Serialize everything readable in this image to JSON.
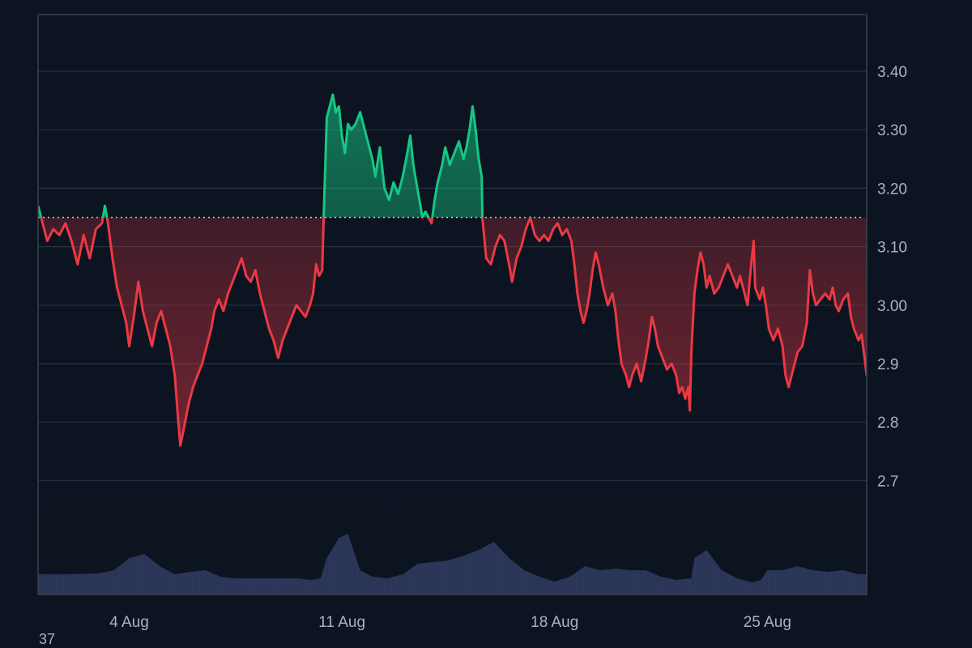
{
  "chart_data": {
    "type": "area",
    "baseline": 3.15,
    "y_axis": {
      "position": "right",
      "range": [
        2.6,
        3.5
      ],
      "ticks": [
        "3.40",
        "3.30",
        "3.20",
        "3.10",
        "3.00",
        "2.9",
        "2.8",
        "2.7"
      ],
      "tick_values": [
        3.4,
        3.3,
        3.2,
        3.1,
        3.0,
        2.9,
        2.8,
        2.7
      ]
    },
    "x_axis": {
      "unit": "days since 1 Aug",
      "range": [
        0,
        31
      ],
      "ticks": [
        "4 Aug",
        "11 Aug",
        "18 Aug",
        "25 Aug"
      ],
      "tick_values": [
        4,
        11,
        18,
        25
      ]
    },
    "grid": "horizontal",
    "corner_label": "37",
    "colors": {
      "background": "#0d1421",
      "above_baseline": "#16c784",
      "below_baseline": "#ea3943",
      "volume": "#2f3a5f",
      "grid": "#2a3140",
      "baseline_line": "#d0d4da"
    },
    "series": [
      {
        "role": "price",
        "points": [
          [
            1.0,
            3.17
          ],
          [
            1.1,
            3.15
          ],
          [
            1.3,
            3.11
          ],
          [
            1.5,
            3.13
          ],
          [
            1.7,
            3.12
          ],
          [
            1.9,
            3.14
          ],
          [
            2.1,
            3.11
          ],
          [
            2.3,
            3.07
          ],
          [
            2.5,
            3.12
          ],
          [
            2.7,
            3.08
          ],
          [
            2.9,
            3.13
          ],
          [
            3.1,
            3.14
          ],
          [
            3.2,
            3.17
          ],
          [
            3.3,
            3.14
          ],
          [
            3.45,
            3.08
          ],
          [
            3.6,
            3.03
          ],
          [
            3.75,
            3.0
          ],
          [
            3.9,
            2.97
          ],
          [
            4.0,
            2.93
          ],
          [
            4.15,
            2.98
          ],
          [
            4.3,
            3.04
          ],
          [
            4.45,
            2.99
          ],
          [
            4.6,
            2.96
          ],
          [
            4.75,
            2.93
          ],
          [
            4.9,
            2.97
          ],
          [
            5.05,
            2.99
          ],
          [
            5.2,
            2.96
          ],
          [
            5.35,
            2.93
          ],
          [
            5.5,
            2.88
          ],
          [
            5.6,
            2.81
          ],
          [
            5.68,
            2.76
          ],
          [
            5.8,
            2.79
          ],
          [
            5.95,
            2.83
          ],
          [
            6.1,
            2.86
          ],
          [
            6.25,
            2.88
          ],
          [
            6.4,
            2.9
          ],
          [
            6.55,
            2.93
          ],
          [
            6.7,
            2.96
          ],
          [
            6.8,
            2.99
          ],
          [
            6.95,
            3.01
          ],
          [
            7.1,
            2.99
          ],
          [
            7.25,
            3.02
          ],
          [
            7.4,
            3.04
          ],
          [
            7.55,
            3.06
          ],
          [
            7.7,
            3.08
          ],
          [
            7.85,
            3.05
          ],
          [
            8.0,
            3.04
          ],
          [
            8.15,
            3.06
          ],
          [
            8.3,
            3.02
          ],
          [
            8.45,
            2.99
          ],
          [
            8.6,
            2.96
          ],
          [
            8.75,
            2.94
          ],
          [
            8.9,
            2.91
          ],
          [
            9.05,
            2.94
          ],
          [
            9.2,
            2.96
          ],
          [
            9.35,
            2.98
          ],
          [
            9.5,
            3.0
          ],
          [
            9.65,
            2.99
          ],
          [
            9.8,
            2.98
          ],
          [
            9.95,
            3.0
          ],
          [
            10.05,
            3.02
          ],
          [
            10.15,
            3.07
          ],
          [
            10.25,
            3.05
          ],
          [
            10.35,
            3.06
          ],
          [
            10.4,
            3.15
          ],
          [
            10.5,
            3.32
          ],
          [
            10.6,
            3.34
          ],
          [
            10.7,
            3.36
          ],
          [
            10.8,
            3.33
          ],
          [
            10.9,
            3.34
          ],
          [
            11.0,
            3.29
          ],
          [
            11.1,
            3.26
          ],
          [
            11.2,
            3.31
          ],
          [
            11.3,
            3.3
          ],
          [
            11.45,
            3.31
          ],
          [
            11.6,
            3.33
          ],
          [
            11.75,
            3.3
          ],
          [
            11.9,
            3.27
          ],
          [
            12.0,
            3.25
          ],
          [
            12.1,
            3.22
          ],
          [
            12.25,
            3.27
          ],
          [
            12.4,
            3.2
          ],
          [
            12.55,
            3.18
          ],
          [
            12.7,
            3.21
          ],
          [
            12.85,
            3.19
          ],
          [
            13.0,
            3.22
          ],
          [
            13.15,
            3.26
          ],
          [
            13.25,
            3.29
          ],
          [
            13.35,
            3.24
          ],
          [
            13.45,
            3.21
          ],
          [
            13.55,
            3.18
          ],
          [
            13.65,
            3.15
          ],
          [
            13.75,
            3.16
          ],
          [
            13.85,
            3.15
          ],
          [
            13.95,
            3.14
          ],
          [
            14.05,
            3.18
          ],
          [
            14.15,
            3.21
          ],
          [
            14.3,
            3.24
          ],
          [
            14.4,
            3.27
          ],
          [
            14.55,
            3.24
          ],
          [
            14.7,
            3.26
          ],
          [
            14.85,
            3.28
          ],
          [
            15.0,
            3.25
          ],
          [
            15.1,
            3.27
          ],
          [
            15.2,
            3.3
          ],
          [
            15.3,
            3.34
          ],
          [
            15.4,
            3.3
          ],
          [
            15.5,
            3.25
          ],
          [
            15.6,
            3.22
          ],
          [
            15.62,
            3.15
          ],
          [
            15.75,
            3.08
          ],
          [
            15.9,
            3.07
          ],
          [
            16.05,
            3.1
          ],
          [
            16.2,
            3.12
          ],
          [
            16.35,
            3.11
          ],
          [
            16.5,
            3.07
          ],
          [
            16.6,
            3.04
          ],
          [
            16.75,
            3.08
          ],
          [
            16.9,
            3.1
          ],
          [
            17.05,
            3.13
          ],
          [
            17.2,
            3.15
          ],
          [
            17.35,
            3.12
          ],
          [
            17.5,
            3.11
          ],
          [
            17.65,
            3.12
          ],
          [
            17.8,
            3.11
          ],
          [
            17.95,
            3.13
          ],
          [
            18.1,
            3.14
          ],
          [
            18.25,
            3.12
          ],
          [
            18.4,
            3.13
          ],
          [
            18.55,
            3.11
          ],
          [
            18.65,
            3.07
          ],
          [
            18.75,
            3.02
          ],
          [
            18.85,
            2.99
          ],
          [
            18.95,
            2.97
          ],
          [
            19.05,
            2.99
          ],
          [
            19.15,
            3.02
          ],
          [
            19.25,
            3.06
          ],
          [
            19.35,
            3.09
          ],
          [
            19.45,
            3.07
          ],
          [
            19.6,
            3.03
          ],
          [
            19.75,
            3.0
          ],
          [
            19.9,
            3.02
          ],
          [
            20.0,
            2.99
          ],
          [
            20.1,
            2.94
          ],
          [
            20.2,
            2.9
          ],
          [
            20.35,
            2.88
          ],
          [
            20.45,
            2.86
          ],
          [
            20.55,
            2.88
          ],
          [
            20.7,
            2.9
          ],
          [
            20.85,
            2.87
          ],
          [
            21.0,
            2.91
          ],
          [
            21.1,
            2.94
          ],
          [
            21.2,
            2.98
          ],
          [
            21.3,
            2.96
          ],
          [
            21.4,
            2.93
          ],
          [
            21.55,
            2.91
          ],
          [
            21.7,
            2.89
          ],
          [
            21.85,
            2.9
          ],
          [
            22.0,
            2.88
          ],
          [
            22.1,
            2.85
          ],
          [
            22.2,
            2.86
          ],
          [
            22.3,
            2.84
          ],
          [
            22.4,
            2.86
          ],
          [
            22.45,
            2.82
          ],
          [
            22.5,
            2.92
          ],
          [
            22.6,
            3.02
          ],
          [
            22.7,
            3.06
          ],
          [
            22.8,
            3.09
          ],
          [
            22.9,
            3.07
          ],
          [
            23.0,
            3.03
          ],
          [
            23.1,
            3.05
          ],
          [
            23.25,
            3.02
          ],
          [
            23.4,
            3.03
          ],
          [
            23.55,
            3.05
          ],
          [
            23.7,
            3.07
          ],
          [
            23.85,
            3.05
          ],
          [
            24.0,
            3.03
          ],
          [
            24.1,
            3.05
          ],
          [
            24.25,
            3.02
          ],
          [
            24.35,
            3.0
          ],
          [
            24.45,
            3.06
          ],
          [
            24.55,
            3.11
          ],
          [
            24.6,
            3.03
          ],
          [
            24.75,
            3.01
          ],
          [
            24.85,
            3.03
          ],
          [
            24.95,
            3.0
          ],
          [
            25.05,
            2.96
          ],
          [
            25.2,
            2.94
          ],
          [
            25.35,
            2.96
          ],
          [
            25.5,
            2.93
          ],
          [
            25.6,
            2.88
          ],
          [
            25.7,
            2.86
          ],
          [
            25.85,
            2.89
          ],
          [
            26.0,
            2.92
          ],
          [
            26.15,
            2.93
          ],
          [
            26.3,
            2.97
          ],
          [
            26.4,
            3.06
          ],
          [
            26.5,
            3.02
          ],
          [
            26.6,
            3.0
          ],
          [
            26.75,
            3.01
          ],
          [
            26.9,
            3.02
          ],
          [
            27.05,
            3.01
          ],
          [
            27.15,
            3.03
          ],
          [
            27.25,
            3.0
          ],
          [
            27.35,
            2.99
          ],
          [
            27.5,
            3.01
          ],
          [
            27.65,
            3.02
          ],
          [
            27.75,
            2.98
          ],
          [
            27.85,
            2.96
          ],
          [
            28.0,
            2.94
          ],
          [
            28.1,
            2.95
          ],
          [
            28.2,
            2.91
          ],
          [
            28.27,
            2.88
          ]
        ]
      },
      {
        "role": "volume",
        "points": [
          [
            1.0,
            0.25
          ],
          [
            2.0,
            0.25
          ],
          [
            3.0,
            0.26
          ],
          [
            3.5,
            0.3
          ],
          [
            4.0,
            0.45
          ],
          [
            4.5,
            0.5
          ],
          [
            5.0,
            0.35
          ],
          [
            5.5,
            0.25
          ],
          [
            6.0,
            0.28
          ],
          [
            6.5,
            0.3
          ],
          [
            7.0,
            0.22
          ],
          [
            7.5,
            0.2
          ],
          [
            8.0,
            0.2
          ],
          [
            9.0,
            0.2
          ],
          [
            9.5,
            0.2
          ],
          [
            10.0,
            0.18
          ],
          [
            10.3,
            0.2
          ],
          [
            10.5,
            0.45
          ],
          [
            10.9,
            0.7
          ],
          [
            11.2,
            0.75
          ],
          [
            11.6,
            0.3
          ],
          [
            12.0,
            0.22
          ],
          [
            12.5,
            0.2
          ],
          [
            13.0,
            0.25
          ],
          [
            13.5,
            0.38
          ],
          [
            14.0,
            0.4
          ],
          [
            14.5,
            0.42
          ],
          [
            15.0,
            0.48
          ],
          [
            15.5,
            0.55
          ],
          [
            16.0,
            0.65
          ],
          [
            16.5,
            0.45
          ],
          [
            17.0,
            0.3
          ],
          [
            17.5,
            0.22
          ],
          [
            18.0,
            0.16
          ],
          [
            18.5,
            0.22
          ],
          [
            19.0,
            0.35
          ],
          [
            19.5,
            0.3
          ],
          [
            20.0,
            0.32
          ],
          [
            20.5,
            0.3
          ],
          [
            21.0,
            0.3
          ],
          [
            21.5,
            0.22
          ],
          [
            22.0,
            0.18
          ],
          [
            22.5,
            0.2
          ],
          [
            22.6,
            0.45
          ],
          [
            23.0,
            0.55
          ],
          [
            23.5,
            0.3
          ],
          [
            24.0,
            0.2
          ],
          [
            24.5,
            0.15
          ],
          [
            24.8,
            0.18
          ],
          [
            25.0,
            0.3
          ],
          [
            25.5,
            0.3
          ],
          [
            26.0,
            0.35
          ],
          [
            26.5,
            0.3
          ],
          [
            27.0,
            0.28
          ],
          [
            27.5,
            0.3
          ],
          [
            28.0,
            0.25
          ],
          [
            28.27,
            0.25
          ]
        ]
      }
    ]
  }
}
